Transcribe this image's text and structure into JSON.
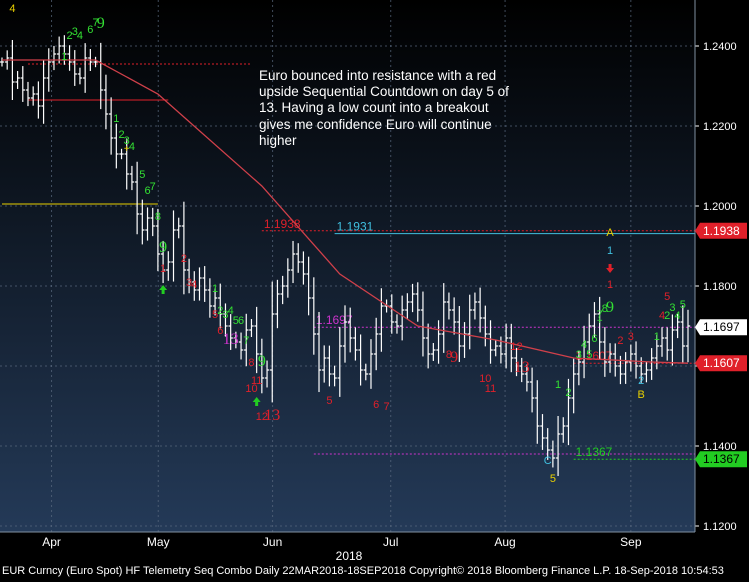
{
  "annotation": "Euro bounced into resistance with a red upside Sequential Countdown on day 5 of 13.  Having a low count into a breakout gives me confidence Euro will continue higher",
  "footer": "EUR Curncy (Euro Spot) HF Telemetry Seq Combo  Daily 22MAR2018-18SEP2018 Copyright© 2018 Bloomberg Finance L.P. 18-Sep-2018 10:54:53",
  "colors": {
    "background_top": "#000000",
    "background_bottom": "#243a58",
    "price_bars": "#ffffff",
    "moving_average": "#d0404a",
    "setup_count": "#33e033",
    "countdown_count": "#e0202a",
    "tdst_line": "#e8d000",
    "sequential_13": "#cc33cc",
    "level_low": "#22cc22",
    "level_high": "#e0202a",
    "level_cyan": "#40c0e0"
  },
  "chart_data": {
    "type": "ohlc",
    "title": "",
    "xlabel": "",
    "ylabel": "",
    "ylim": [
      1.1185,
      1.2515
    ],
    "y_ticks": [
      "1.2400",
      "1.2200",
      "1.2000",
      "1.1800",
      "1.1600",
      "1.1400",
      "1.1200"
    ],
    "x_ticks": [
      {
        "label": "Apr",
        "date": "2018-04-04"
      },
      {
        "label": "May",
        "date": "2018-05-02"
      },
      {
        "label": "Jun",
        "date": "2018-06-01"
      },
      {
        "label": "Jul",
        "date": "2018-07-02"
      },
      {
        "label": "Aug",
        "date": "2018-08-01"
      },
      {
        "label": "Sep",
        "date": "2018-09-03"
      }
    ],
    "year_label": "2018",
    "x_range": [
      "2018-03-22",
      "2018-09-18"
    ],
    "grid": true,
    "close_series": [
      1.236,
      1.237,
      1.231,
      1.232,
      1.229,
      1.227,
      1.228,
      1.225,
      1.232,
      1.236,
      1.238,
      1.24,
      1.238,
      1.236,
      1.233,
      1.232,
      1.237,
      1.236,
      1.236,
      1.229,
      1.223,
      1.217,
      1.213,
      1.213,
      1.208,
      1.206,
      1.198,
      1.194,
      1.197,
      1.195,
      1.188,
      1.184,
      1.186,
      1.194,
      1.195,
      1.184,
      1.181,
      1.179,
      1.182,
      1.179,
      1.175,
      1.177,
      1.173,
      1.17,
      1.167,
      1.166,
      1.164,
      1.169,
      1.17,
      1.163,
      1.157,
      1.159,
      1.173,
      1.178,
      1.18,
      1.184,
      1.188,
      1.186,
      1.183,
      1.177,
      1.168,
      1.159,
      1.162,
      1.158,
      1.157,
      1.165,
      1.171,
      1.167,
      1.164,
      1.159,
      1.158,
      1.163,
      1.168,
      1.175,
      1.175,
      1.171,
      1.17,
      1.174,
      1.176,
      1.178,
      1.174,
      1.167,
      1.163,
      1.164,
      1.168,
      1.176,
      1.174,
      1.171,
      1.165,
      1.168,
      1.174,
      1.176,
      1.172,
      1.168,
      1.164,
      1.165,
      1.163,
      1.167,
      1.162,
      1.16,
      1.158,
      1.156,
      1.152,
      1.145,
      1.142,
      1.139,
      1.137,
      1.143,
      1.145,
      1.152,
      1.158,
      1.161,
      1.166,
      1.17,
      1.173,
      1.166,
      1.161,
      1.163,
      1.16,
      1.158,
      1.161,
      1.163,
      1.16,
      1.158,
      1.159,
      1.162,
      1.165,
      1.167,
      1.164,
      1.169,
      1.171,
      1.165,
      1.17
    ],
    "moving_average": [
      [
        0,
        1.2365
      ],
      [
        18,
        1.2365
      ],
      [
        30,
        1.228
      ],
      [
        50,
        1.205
      ],
      [
        65,
        1.183
      ],
      [
        80,
        1.17
      ],
      [
        95,
        1.1665
      ],
      [
        110,
        1.162
      ],
      [
        125,
        1.161
      ],
      [
        132,
        1.1607
      ]
    ],
    "levels": [
      {
        "value": 1.1931,
        "label": "1.1931",
        "from": 64,
        "color": "#40c0e0",
        "style": "solid"
      },
      {
        "value": 1.1938,
        "label": "1.1938",
        "from": 50,
        "color": "#e0202a",
        "style": "dashed"
      },
      {
        "value": 1.1697,
        "label": "1.1697",
        "from": 60,
        "color": "#cc33cc",
        "style": "dashed"
      },
      {
        "value": 1.1607,
        "label": "1.1607",
        "from": 110,
        "color": "#e0202a",
        "style": "dashed"
      },
      {
        "value": 1.1367,
        "label": "1.1367",
        "from": 110,
        "color": "#22cc22",
        "style": "dashed"
      },
      {
        "value": 1.138,
        "label": "",
        "from": 60,
        "color": "#cc33cc",
        "style": "dashed"
      },
      {
        "value": 1.2355,
        "label": "",
        "from": 5,
        "to": 48,
        "color": "#e0202a",
        "style": "dashed"
      },
      {
        "value": 1.2265,
        "label": "",
        "from": 5,
        "to": 32,
        "color": "#e0202a",
        "style": "solid"
      },
      {
        "value": 1.2005,
        "label": "",
        "from": 0,
        "to": 30,
        "color": "#e8d000",
        "style": "solid"
      }
    ],
    "price_labels": [
      {
        "value": 1.1938,
        "label": "1.1938",
        "bg": "#e0202a",
        "fg": "#ffffff"
      },
      {
        "value": 1.1697,
        "label": "1.1697",
        "bg": "#ffffff",
        "fg": "#000000"
      },
      {
        "value": 1.1607,
        "label": "1.1607",
        "bg": "#e0202a",
        "fg": "#ffffff"
      },
      {
        "value": 1.1367,
        "label": "1.1367",
        "bg": "#22cc22",
        "fg": "#000000"
      }
    ],
    "counts": [
      {
        "t": "4",
        "i": 2,
        "v": 1.2485,
        "c": "#e8d000"
      },
      {
        "t": "1",
        "i": 12,
        "v": 1.2365,
        "c": "#33e033"
      },
      {
        "t": "2",
        "i": 13,
        "v": 1.2418,
        "c": "#33e033"
      },
      {
        "t": "3",
        "i": 14,
        "v": 1.2428,
        "c": "#33e033"
      },
      {
        "t": "4",
        "i": 15,
        "v": 1.2418,
        "c": "#33e033"
      },
      {
        "t": "6",
        "i": 17,
        "v": 1.2432,
        "c": "#33e033"
      },
      {
        "t": "7",
        "i": 18,
        "v": 1.245,
        "c": "#33e033"
      },
      {
        "t": "9",
        "i": 19,
        "v": 1.2445,
        "c": "#33e033"
      },
      {
        "t": "1",
        "i": 22,
        "v": 1.221,
        "c": "#33e033"
      },
      {
        "t": "2",
        "i": 23,
        "v": 1.217,
        "c": "#33e033"
      },
      {
        "t": "3",
        "i": 24,
        "v": 1.2155,
        "c": "#33e033"
      },
      {
        "t": "4",
        "i": 25,
        "v": 1.214,
        "c": "#33e033"
      },
      {
        "t": "5",
        "i": 27,
        "v": 1.207,
        "c": "#33e033"
      },
      {
        "t": "6",
        "i": 28,
        "v": 1.203,
        "c": "#33e033"
      },
      {
        "t": "7",
        "i": 29,
        "v": 1.204,
        "c": "#33e033"
      },
      {
        "t": "8",
        "i": 30,
        "v": 1.1965,
        "c": "#33e033"
      },
      {
        "t": "9",
        "i": 31,
        "v": 1.1885,
        "c": "#33e033"
      },
      {
        "t": "1",
        "i": 31,
        "v": 1.1835,
        "c": "#e0202a"
      },
      {
        "t": "2",
        "i": 35,
        "v": 1.186,
        "c": "#e0202a"
      },
      {
        "t": "3",
        "i": 36,
        "v": 1.18,
        "c": "#e0202a"
      },
      {
        "t": "4",
        "i": 37,
        "v": 1.1795,
        "c": "#e0202a"
      },
      {
        "t": "1",
        "i": 41,
        "v": 1.1785,
        "c": "#33e033"
      },
      {
        "t": "5",
        "i": 41,
        "v": 1.172,
        "c": "#e0202a"
      },
      {
        "t": "2",
        "i": 42,
        "v": 1.173,
        "c": "#33e033"
      },
      {
        "t": "3",
        "i": 43,
        "v": 1.172,
        "c": "#33e033"
      },
      {
        "t": "4",
        "i": 44,
        "v": 1.173,
        "c": "#33e033"
      },
      {
        "t": "6",
        "i": 42,
        "v": 1.168,
        "c": "#e0202a"
      },
      {
        "t": "5",
        "i": 45,
        "v": 1.1705,
        "c": "#33e033"
      },
      {
        "t": "6",
        "i": 46,
        "v": 1.1705,
        "c": "#33e033"
      },
      {
        "t": "13",
        "i": 44,
        "v": 1.1655,
        "c": "#cc33cc"
      },
      {
        "t": "7",
        "i": 47,
        "v": 1.1655,
        "c": "#33e033"
      },
      {
        "t": "8",
        "i": 48,
        "v": 1.16,
        "c": "#e0202a"
      },
      {
        "t": "9",
        "i": 50,
        "v": 1.16,
        "c": "#33e033"
      },
      {
        "t": "11",
        "i": 49,
        "v": 1.1555,
        "c": "#e0202a"
      },
      {
        "t": "10",
        "i": 48,
        "v": 1.1535,
        "c": "#e0202a"
      },
      {
        "t": "12",
        "i": 50,
        "v": 1.1465,
        "c": "#e0202a"
      },
      {
        "t": "13",
        "i": 52,
        "v": 1.1465,
        "c": "#e0202a"
      },
      {
        "t": "5",
        "i": 63,
        "v": 1.1505,
        "c": "#e0202a"
      },
      {
        "t": "6",
        "i": 72,
        "v": 1.1495,
        "c": "#e0202a"
      },
      {
        "t": "7",
        "i": 74,
        "v": 1.149,
        "c": "#e0202a"
      },
      {
        "t": "8",
        "i": 86,
        "v": 1.162,
        "c": "#e0202a"
      },
      {
        "t": "9",
        "i": 87,
        "v": 1.161,
        "c": "#e0202a"
      },
      {
        "t": "10",
        "i": 93,
        "v": 1.156,
        "c": "#e0202a"
      },
      {
        "t": "11",
        "i": 94,
        "v": 1.1535,
        "c": "#e0202a"
      },
      {
        "t": "12",
        "i": 99,
        "v": 1.164,
        "c": "#e0202a"
      },
      {
        "t": "13",
        "i": 100,
        "v": 1.1585,
        "c": "#e0202a"
      },
      {
        "t": "1",
        "i": 107,
        "v": 1.1545,
        "c": "#33e033"
      },
      {
        "t": "2",
        "i": 109,
        "v": 1.1525,
        "c": "#33e033"
      },
      {
        "t": "C",
        "i": 105,
        "v": 1.1355,
        "c": "#40c0e0"
      },
      {
        "t": "5",
        "i": 106,
        "v": 1.131,
        "c": "#e8d000"
      },
      {
        "t": "3",
        "i": 111,
        "v": 1.162,
        "c": "#33e033"
      },
      {
        "t": "4",
        "i": 112,
        "v": 1.1645,
        "c": "#33e033"
      },
      {
        "t": "5",
        "i": 113,
        "v": 1.162,
        "c": "#33e033"
      },
      {
        "t": "6",
        "i": 114,
        "v": 1.166,
        "c": "#33e033"
      },
      {
        "t": "7",
        "i": 115,
        "v": 1.172,
        "c": "#33e033"
      },
      {
        "t": "8",
        "i": 116,
        "v": 1.1735,
        "c": "#33e033"
      },
      {
        "t": "9",
        "i": 117,
        "v": 1.1735,
        "c": "#33e033"
      },
      {
        "t": "A",
        "i": 117,
        "v": 1.1925,
        "c": "#e8d000"
      },
      {
        "t": "1",
        "i": 117,
        "v": 1.188,
        "c": "#40c0e0"
      },
      {
        "t": "1",
        "i": 117,
        "v": 1.1795,
        "c": "#e0202a"
      },
      {
        "t": "2",
        "i": 119,
        "v": 1.1655,
        "c": "#e0202a"
      },
      {
        "t": "3",
        "i": 121,
        "v": 1.1665,
        "c": "#e0202a"
      },
      {
        "t": "2",
        "i": 123,
        "v": 1.1555,
        "c": "#40c0e0"
      },
      {
        "t": "B",
        "i": 123,
        "v": 1.152,
        "c": "#e8d000"
      },
      {
        "t": "1",
        "i": 126,
        "v": 1.1665,
        "c": "#33e033"
      },
      {
        "t": "4",
        "i": 127,
        "v": 1.1718,
        "c": "#e0202a"
      },
      {
        "t": "5",
        "i": 128,
        "v": 1.1765,
        "c": "#e0202a"
      },
      {
        "t": "2",
        "i": 128,
        "v": 1.1718,
        "c": "#33e033"
      },
      {
        "t": "3",
        "i": 129,
        "v": 1.1738,
        "c": "#33e033"
      },
      {
        "t": "4",
        "i": 130,
        "v": 1.1718,
        "c": "#33e033"
      },
      {
        "t": "5",
        "i": 131,
        "v": 1.1745,
        "c": "#33e033"
      }
    ],
    "arrows": [
      {
        "dir": "up",
        "i": 31,
        "v": 1.179,
        "c": "#22cc22"
      },
      {
        "dir": "up",
        "i": 49,
        "v": 1.151,
        "c": "#22cc22"
      },
      {
        "dir": "down",
        "i": 117,
        "v": 1.1845,
        "c": "#e0202a"
      }
    ],
    "markers": [
      {
        "t": "+",
        "i": 24,
        "v": 1.2135,
        "c": "#e8d000"
      },
      {
        "t": "+",
        "i": 115,
        "v": 1.1705,
        "c": "#33e033"
      }
    ]
  }
}
